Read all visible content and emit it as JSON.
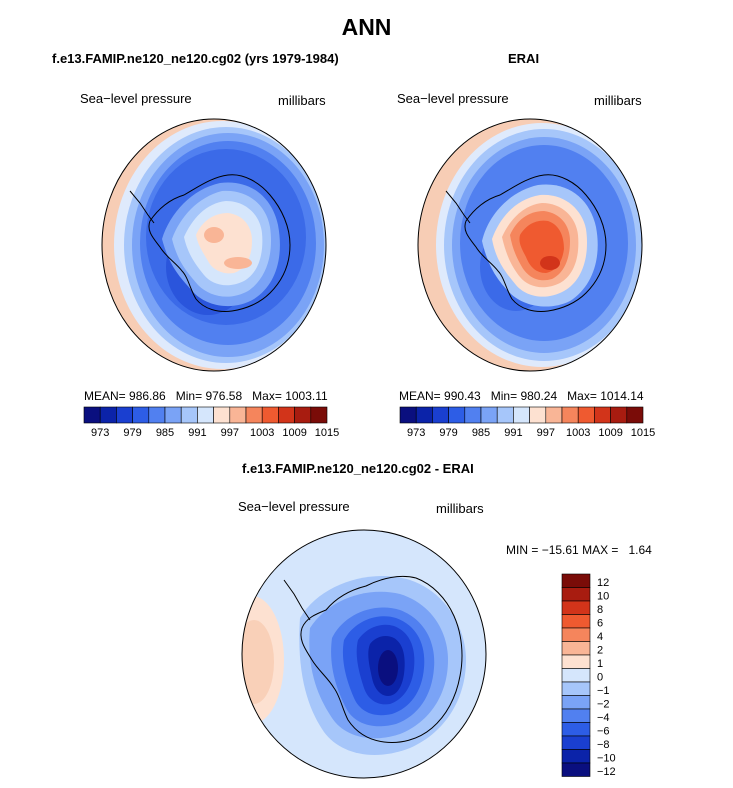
{
  "title": "ANN",
  "colors": {
    "scale13": [
      "#0a0f7f",
      "#0b23a9",
      "#1a3fd0",
      "#2d5de6",
      "#5180f0",
      "#7aa3f6",
      "#a6c6fa",
      "#d5e6fc",
      "#fde1d1",
      "#f9b596",
      "#f5855c",
      "#ef5a30",
      "#d2341a",
      "#a81c10",
      "#7a0c08"
    ],
    "diff": [
      "#0a0f7f",
      "#0b23a9",
      "#1a3fd0",
      "#2d5de6",
      "#5180f0",
      "#7aa3f6",
      "#a6c6fa",
      "#d5e6fc",
      "#fde1d1",
      "#f9b596",
      "#f5855c",
      "#ef5a30",
      "#d2341a",
      "#a81c10",
      "#7a0c08"
    ]
  },
  "panels": [
    {
      "title": "f.e13.FAMIP.ne120_ne120.cg02 (yrs 1979-1984)",
      "variable": "Sea−level pressure",
      "units": "millibars",
      "stats": {
        "mean_label": "MEAN=",
        "mean": "986.86",
        "min_label": "Min=",
        "min": "976.58",
        "max_label": "Max=",
        "max": "1003.11"
      },
      "colorbar_ticks": [
        "973",
        "979",
        "985",
        "991",
        "997",
        "1003",
        "1009",
        "1015"
      ]
    },
    {
      "title": "ERAI",
      "variable": "Sea−level pressure",
      "units": "millibars",
      "stats": {
        "mean_label": "MEAN=",
        "mean": "990.43",
        "min_label": "Min=",
        "min": "980.24",
        "max_label": "Max=",
        "max": "1014.14"
      },
      "colorbar_ticks": [
        "973",
        "979",
        "985",
        "991",
        "997",
        "1003",
        "1009",
        "1015"
      ]
    },
    {
      "title": "f.e13.FAMIP.ne120_ne120.cg02 - ERAI",
      "variable": "Sea−level pressure",
      "units": "millibars",
      "stats": {
        "min_label": "MIN =",
        "min": "−15.61",
        "max_label": "MAX =",
        "max": "1.64"
      },
      "colorbar_ticks": [
        "12",
        "10",
        "8",
        "6",
        "4",
        "2",
        "1",
        "0",
        "−1",
        "−2",
        "−4",
        "−6",
        "−8",
        "−10",
        "−12"
      ]
    }
  ],
  "chart_data": [
    {
      "type": "heatmap",
      "projection": "south-polar-stereographic",
      "title": "f.e13.FAMIP.ne120_ne120.cg02 (yrs 1979-1984)",
      "variable": "Sea−level pressure",
      "units": "millibars",
      "mean": 986.86,
      "min": 976.58,
      "max": 1003.11,
      "contour_levels": [
        973,
        976,
        979,
        982,
        985,
        988,
        991,
        994,
        997,
        1000,
        1003,
        1006,
        1009,
        1012,
        1015
      ],
      "colorbar_labels": [
        973,
        979,
        985,
        991,
        997,
        1003,
        1009,
        1015
      ],
      "legend": "bottom"
    },
    {
      "type": "heatmap",
      "projection": "south-polar-stereographic",
      "title": "ERAI",
      "variable": "Sea−level pressure",
      "units": "millibars",
      "mean": 990.43,
      "min": 980.24,
      "max": 1014.14,
      "contour_levels": [
        973,
        976,
        979,
        982,
        985,
        988,
        991,
        994,
        997,
        1000,
        1003,
        1006,
        1009,
        1012,
        1015
      ],
      "colorbar_labels": [
        973,
        979,
        985,
        991,
        997,
        1003,
        1009,
        1015
      ],
      "legend": "bottom"
    },
    {
      "type": "heatmap",
      "projection": "south-polar-stereographic",
      "title": "f.e13.FAMIP.ne120_ne120.cg02 - ERAI",
      "variable": "Sea−level pressure",
      "units": "millibars",
      "min": -15.61,
      "max": 1.64,
      "contour_levels": [
        -12,
        -10,
        -8,
        -6,
        -4,
        -2,
        -1,
        0,
        1,
        2,
        4,
        6,
        8,
        10,
        12
      ],
      "colorbar_labels": [
        12,
        10,
        8,
        6,
        4,
        2,
        1,
        0,
        -1,
        -2,
        -4,
        -6,
        -8,
        -10,
        -12
      ],
      "legend": "right"
    }
  ]
}
